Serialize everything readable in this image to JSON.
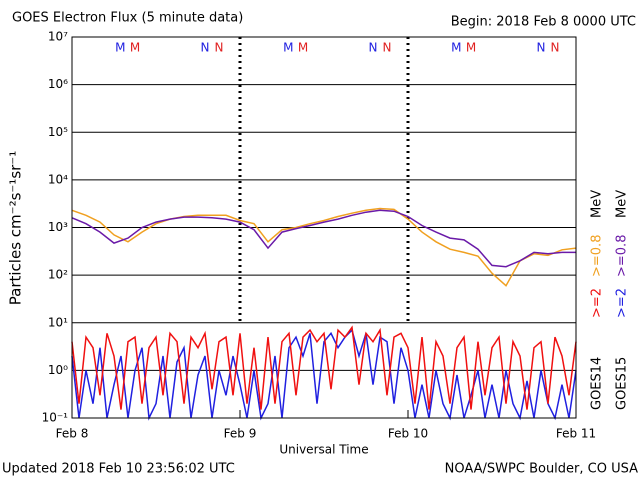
{
  "chart_data": {
    "type": "line",
    "title": "GOES Electron Flux (5 minute data)",
    "subtitle": "Begin: 2018 Feb 8 0000 UTC",
    "xlabel": "Universal Time",
    "ylabel": "Particles cm⁻²s⁻¹sr⁻¹",
    "footer_left": "Updated 2018 Feb 10 23:56:02 UTC",
    "footer_right": "NOAA/SWPC Boulder, CO USA",
    "log_y": true,
    "grid": true,
    "threshold": 1000,
    "ylim": [
      0.1,
      10000000
    ],
    "yticks": [
      {
        "value": 10000000,
        "label": "10⁷"
      },
      {
        "value": 1000000,
        "label": "10⁶"
      },
      {
        "value": 100000,
        "label": "10⁵"
      },
      {
        "value": 10000,
        "label": "10⁴"
      },
      {
        "value": 1000,
        "label": "10³"
      },
      {
        "value": 100,
        "label": "10²"
      },
      {
        "value": 10,
        "label": "10¹"
      },
      {
        "value": 1,
        "label": "10⁰"
      },
      {
        "value": 0.1,
        "label": "10⁻¹"
      }
    ],
    "xlim": [
      0,
      72
    ],
    "xticks": [
      {
        "value": 0,
        "label": "Feb 8"
      },
      {
        "value": 24,
        "label": "Feb 9"
      },
      {
        "value": 48,
        "label": "Feb 10"
      },
      {
        "value": 72,
        "label": "Feb 11"
      }
    ],
    "day_lines": [
      24,
      48
    ],
    "legend_groups": [
      "GOES14",
      "GOES15"
    ],
    "unit": "MeV",
    "markers": [
      {
        "label": "M",
        "x": 6.9,
        "color": "#2020e0"
      },
      {
        "label": "M",
        "x": 9.0,
        "color": "#e02020"
      },
      {
        "label": "N",
        "x": 19.0,
        "color": "#2020e0"
      },
      {
        "label": "N",
        "x": 21.0,
        "color": "#e02020"
      },
      {
        "label": "M",
        "x": 30.9,
        "color": "#2020e0"
      },
      {
        "label": "M",
        "x": 33.0,
        "color": "#e02020"
      },
      {
        "label": "N",
        "x": 43.0,
        "color": "#2020e0"
      },
      {
        "label": "N",
        "x": 45.0,
        "color": "#e02020"
      },
      {
        "label": "M",
        "x": 54.9,
        "color": "#2020e0"
      },
      {
        "label": "M",
        "x": 57.0,
        "color": "#e02020"
      },
      {
        "label": "N",
        "x": 67.0,
        "color": "#2020e0"
      },
      {
        "label": "N",
        "x": 69.0,
        "color": "#e02020"
      }
    ],
    "x": [
      0,
      1,
      2,
      3,
      4,
      5,
      6,
      7,
      8,
      9,
      10,
      11,
      12,
      13,
      14,
      15,
      16,
      17,
      18,
      19,
      20,
      21,
      22,
      23,
      24,
      25,
      26,
      27,
      28,
      29,
      30,
      31,
      32,
      33,
      34,
      35,
      36,
      37,
      38,
      39,
      40,
      41,
      42,
      43,
      44,
      45,
      46,
      47,
      48,
      49,
      50,
      51,
      52,
      53,
      54,
      55,
      56,
      57,
      58,
      59,
      60,
      61,
      62,
      63,
      64,
      65,
      66,
      67,
      68,
      69,
      70,
      71,
      72
    ],
    "series": [
      {
        "name": ">=2",
        "group": 1,
        "color": "#2020e0",
        "values": [
          2,
          0.1,
          1,
          0.2,
          3,
          0.1,
          0.5,
          2,
          0.1,
          1,
          3,
          0.1,
          0.2,
          2,
          0.1,
          1.5,
          3,
          0.1,
          0.8,
          2,
          0.1,
          1,
          0.3,
          2,
          0.5,
          0.1,
          1,
          0.1,
          0.2,
          2,
          0.1,
          3,
          5,
          2,
          6,
          0.2,
          4,
          6,
          3,
          5,
          7,
          2,
          6,
          0.5,
          5,
          4,
          0.2,
          3,
          1,
          0.1,
          0.5,
          0.1,
          1,
          0.2,
          0.1,
          0.8,
          0.1,
          0.3,
          1,
          0.1,
          0.5,
          0.1,
          1,
          0.2,
          0.1,
          0.6,
          0.1,
          1,
          0.2,
          0.1,
          0.5,
          0.1,
          1
        ]
      },
      {
        "name": ">=2",
        "group": 0,
        "color": "#f01010",
        "values": [
          4,
          0.2,
          5,
          3,
          0.3,
          6,
          2,
          0.15,
          4,
          5,
          0.2,
          3,
          5,
          0.3,
          6,
          4,
          0.2,
          5,
          3,
          6,
          0.4,
          4,
          5,
          0.3,
          6,
          0.2,
          3,
          0.15,
          5,
          0.2,
          4,
          6,
          0.3,
          5,
          7,
          4,
          6,
          0.4,
          7,
          5,
          8,
          0.5,
          6,
          4,
          7,
          0.3,
          5,
          6,
          3,
          0.2,
          5,
          0.15,
          4,
          2,
          0.2,
          3,
          5,
          0.15,
          4,
          0.3,
          3,
          5,
          0.2,
          4,
          2,
          0.15,
          3,
          4,
          0.2,
          5,
          2,
          0.3,
          4
        ]
      },
      {
        "name": ">=0.8",
        "group": 0,
        "color": "#f0a020",
        "x": [
          0,
          2,
          4,
          6,
          8,
          10,
          12,
          14,
          16,
          18,
          20,
          22,
          24,
          26,
          28,
          30,
          32,
          34,
          36,
          38,
          40,
          42,
          44,
          46,
          48,
          50,
          52,
          54,
          56,
          58,
          60,
          62,
          64,
          66,
          68,
          70,
          72
        ],
        "values": [
          2300,
          1800,
          1300,
          700,
          500,
          800,
          1200,
          1500,
          1700,
          1800,
          1800,
          1800,
          1400,
          1200,
          500,
          900,
          1000,
          1200,
          1400,
          1700,
          2000,
          2300,
          2500,
          2400,
          1500,
          800,
          500,
          350,
          300,
          250,
          110,
          60,
          200,
          280,
          260,
          340,
          370
        ]
      },
      {
        "name": ">=0.8",
        "group": 1,
        "color": "#6a1aa8",
        "x": [
          0,
          2,
          4,
          6,
          8,
          10,
          12,
          14,
          16,
          18,
          20,
          22,
          24,
          26,
          28,
          30,
          32,
          34,
          36,
          38,
          40,
          42,
          44,
          46,
          48,
          50,
          52,
          54,
          56,
          58,
          60,
          62,
          64,
          66,
          68,
          70,
          72
        ],
        "values": [
          1600,
          1200,
          800,
          470,
          600,
          1000,
          1300,
          1500,
          1650,
          1650,
          1600,
          1500,
          1300,
          900,
          370,
          800,
          950,
          1100,
          1300,
          1500,
          1800,
          2100,
          2300,
          2200,
          1700,
          1100,
          800,
          600,
          550,
          350,
          160,
          150,
          200,
          300,
          280,
          300,
          300
        ]
      }
    ]
  }
}
